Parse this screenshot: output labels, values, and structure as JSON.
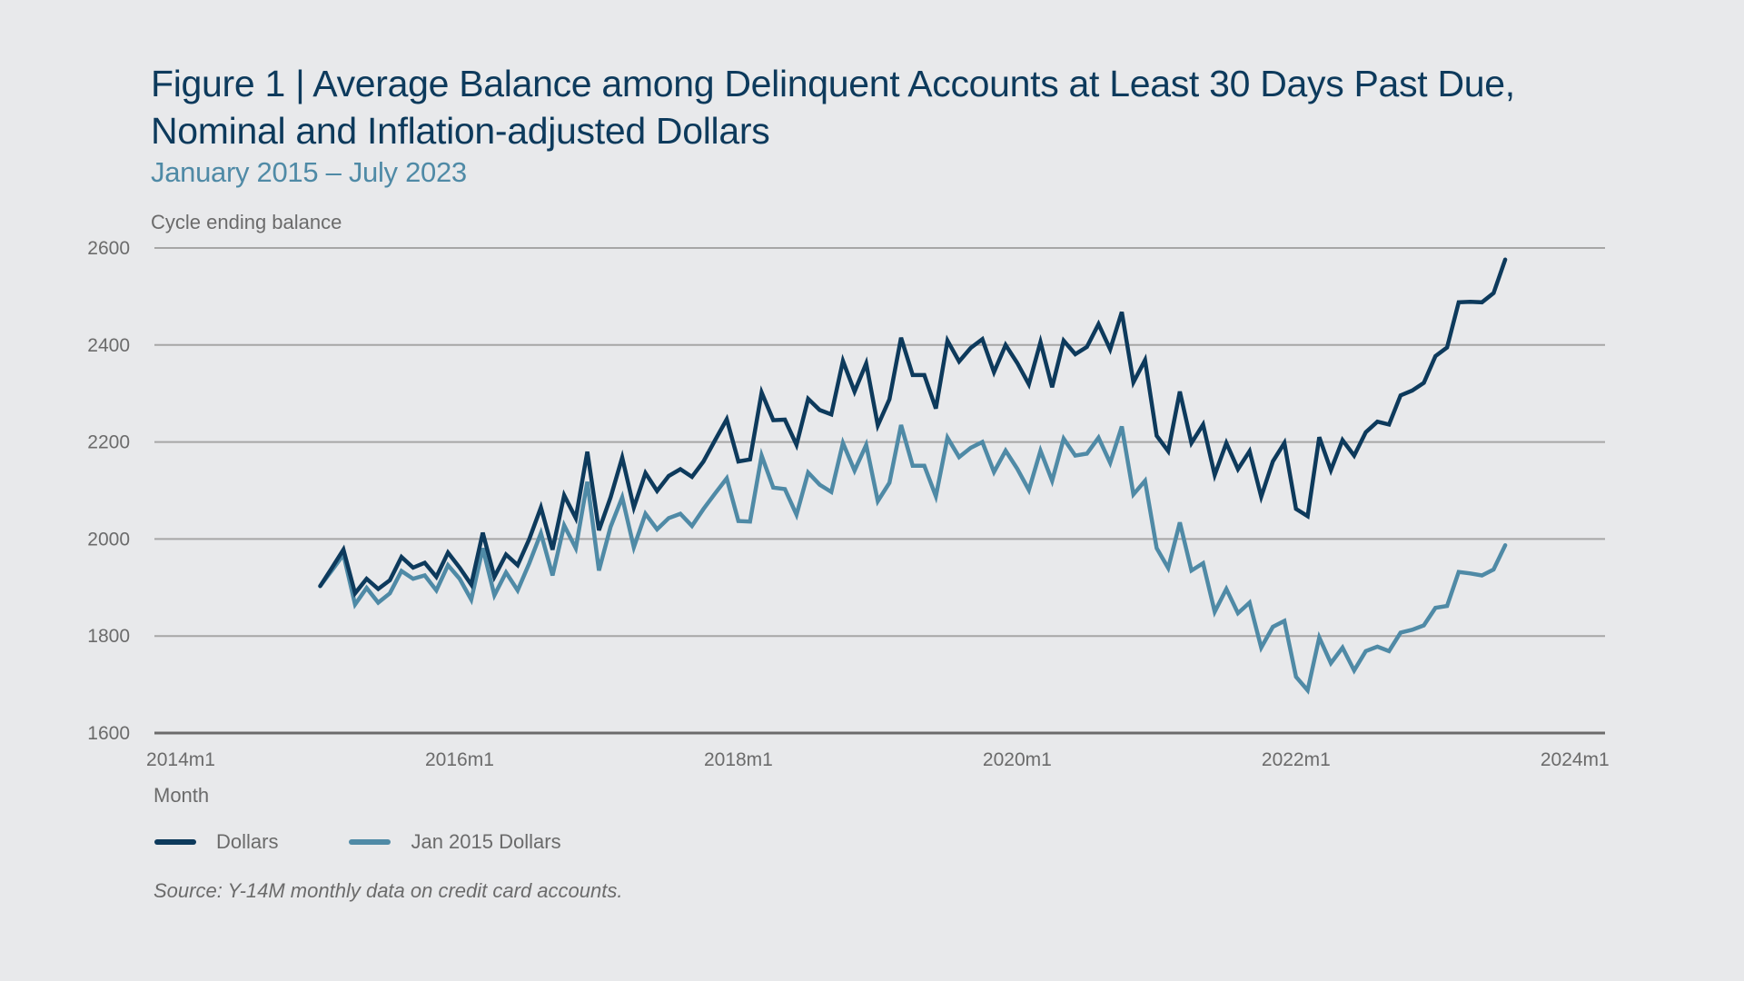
{
  "header": {
    "title_line1": "Figure 1 | Average Balance among Delinquent Accounts at Least 30 Days Past Due,",
    "title_line2": "Nominal and Inflation-adjusted Dollars",
    "subtitle": "January 2015 – July 2023"
  },
  "footer": {
    "source": "Source: Y-14M monthly data on credit card accounts."
  },
  "chart_data": {
    "type": "line",
    "title": "Average Balance among Delinquent Accounts at Least 30 Days Past Due, Nominal and Inflation-adjusted Dollars",
    "subtitle": "January 2015 – July 2023",
    "xlabel": "Month",
    "ylabel": "Cycle ending balance",
    "ylim": [
      1600,
      2600
    ],
    "yticks": [
      1600,
      1800,
      2000,
      2200,
      2400,
      2600
    ],
    "ytick_labels": [
      "1600",
      "1800",
      "2000",
      "2200",
      "2400",
      "2600"
    ],
    "xlim": [
      "2014m1",
      "2024m1"
    ],
    "xticks": [
      "2014m1",
      "2016m1",
      "2018m1",
      "2020m1",
      "2022m1",
      "2024m1"
    ],
    "x_start": "2015m1",
    "x_end": "2023m7",
    "x_frequency": "monthly",
    "grid": "horizontal",
    "legend_position": "bottom-left",
    "series": [
      {
        "name": "Dollars",
        "color": "#0d3a5c",
        "values": [
          1903,
          1940,
          1978,
          1888,
          1918,
          1897,
          1915,
          1963,
          1941,
          1951,
          1922,
          1972,
          1941,
          1906,
          2013,
          1922,
          1968,
          1946,
          2000,
          2065,
          1978,
          2090,
          2043,
          2180,
          2018,
          2086,
          2168,
          2065,
          2136,
          2099,
          2130,
          2144,
          2128,
          2160,
          2204,
          2247,
          2160,
          2164,
          2302,
          2245,
          2246,
          2194,
          2289,
          2266,
          2257,
          2367,
          2304,
          2362,
          2234,
          2288,
          2415,
          2338,
          2338,
          2269,
          2409,
          2366,
          2394,
          2412,
          2344,
          2400,
          2363,
          2319,
          2406,
          2313,
          2409,
          2381,
          2396,
          2443,
          2391,
          2468,
          2323,
          2369,
          2213,
          2181,
          2304,
          2198,
          2236,
          2132,
          2198,
          2144,
          2181,
          2087,
          2160,
          2198,
          2062,
          2047,
          2210,
          2142,
          2204,
          2172,
          2220,
          2242,
          2236,
          2296,
          2306,
          2322,
          2377,
          2395,
          2488,
          2489,
          2488,
          2507,
          2576
        ]
      },
      {
        "name": "Jan 2015 Dollars",
        "color": "#4f8aa6",
        "values": [
          1903,
          1935,
          1968,
          1865,
          1899,
          1869,
          1888,
          1934,
          1918,
          1925,
          1894,
          1946,
          1918,
          1875,
          1981,
          1884,
          1931,
          1894,
          1950,
          2012,
          1925,
          2028,
          1981,
          2118,
          1935,
          2025,
          2086,
          1983,
          2052,
          2020,
          2043,
          2052,
          2027,
          2062,
          2094,
          2125,
          2037,
          2036,
          2172,
          2106,
          2103,
          2050,
          2137,
          2112,
          2097,
          2198,
          2141,
          2194,
          2078,
          2116,
          2235,
          2151,
          2151,
          2088,
          2209,
          2169,
          2188,
          2200,
          2138,
          2182,
          2145,
          2101,
          2182,
          2120,
          2207,
          2172,
          2176,
          2209,
          2157,
          2232,
          2092,
          2120,
          1981,
          1940,
          2034,
          1935,
          1950,
          1850,
          1897,
          1847,
          1869,
          1776,
          1819,
          1831,
          1716,
          1688,
          1797,
          1744,
          1776,
          1729,
          1769,
          1778,
          1769,
          1807,
          1813,
          1822,
          1858,
          1862,
          1932,
          1929,
          1925,
          1937,
          1987
        ]
      }
    ]
  }
}
